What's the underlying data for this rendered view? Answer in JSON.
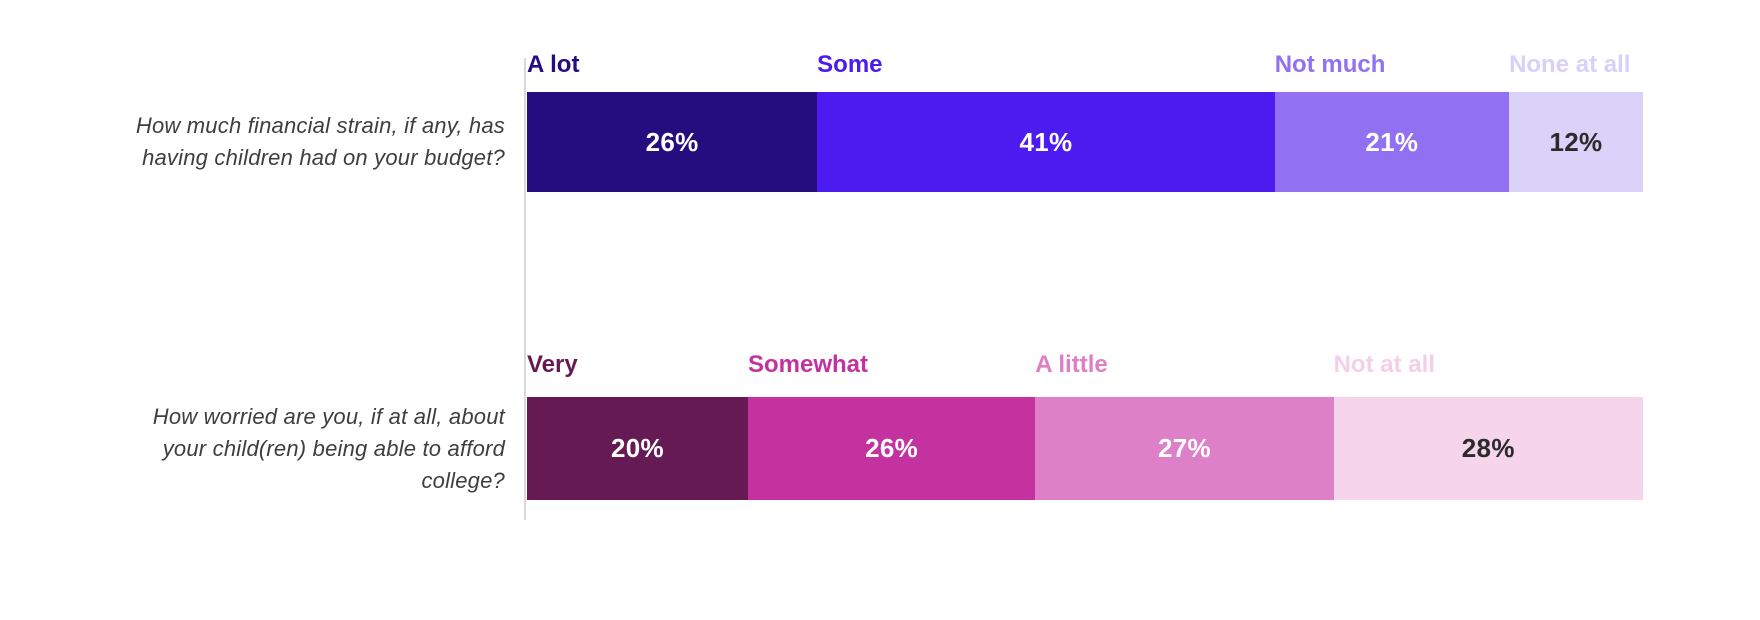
{
  "chart_data": [
    {
      "type": "bar",
      "orientation": "horizontal-stacked",
      "question": "How much financial strain, if any, has having children had on your budget?",
      "question_lines": [
        "How much financial strain, if any, has",
        "having children had on your budget?"
      ],
      "unit": "%",
      "legend_position": "above-bar-left-aligned",
      "segments": [
        {
          "label": "A lot",
          "value": 26,
          "display": "26%",
          "color": "#250d80",
          "label_color": "#250d80",
          "value_color": "#ffffff"
        },
        {
          "label": "Some",
          "value": 41,
          "display": "41%",
          "color": "#4b1bf0",
          "label_color": "#4b1bf0",
          "value_color": "#ffffff"
        },
        {
          "label": "Not much",
          "value": 21,
          "display": "21%",
          "color": "#9170f2",
          "label_color": "#9170f2",
          "value_color": "#ffffff"
        },
        {
          "label": "None at all",
          "value": 12,
          "display": "12%",
          "color": "#dbd2fa",
          "label_color": "#d9cffa",
          "value_color": "#2b2b2b"
        }
      ]
    },
    {
      "type": "bar",
      "orientation": "horizontal-stacked",
      "question": "How worried are you, if at all, about your child(ren) being able to afford college?",
      "question_lines": [
        "How worried are you, if at all, about",
        "your child(ren) being able to afford",
        "college?"
      ],
      "unit": "%",
      "legend_position": "above-bar-left-aligned",
      "segments": [
        {
          "label": "Very",
          "value": 20,
          "display": "20%",
          "color": "#651a54",
          "label_color": "#651a54",
          "value_color": "#ffffff"
        },
        {
          "label": "Somewhat",
          "value": 26,
          "display": "26%",
          "color": "#c4329f",
          "label_color": "#c4329f",
          "value_color": "#ffffff"
        },
        {
          "label": "A little",
          "value": 27,
          "display": "27%",
          "color": "#dd80c8",
          "label_color": "#de7fc6",
          "value_color": "#ffffff"
        },
        {
          "label": "Not at all",
          "value": 28,
          "display": "28%",
          "color": "#f6d5ec",
          "label_color": "#f5cfe9",
          "value_color": "#2b2b2b"
        }
      ]
    }
  ],
  "styles": {
    "background": "#ffffff",
    "question_color": "#3e3e3e",
    "axis_line_color": "#d9d9d9"
  }
}
